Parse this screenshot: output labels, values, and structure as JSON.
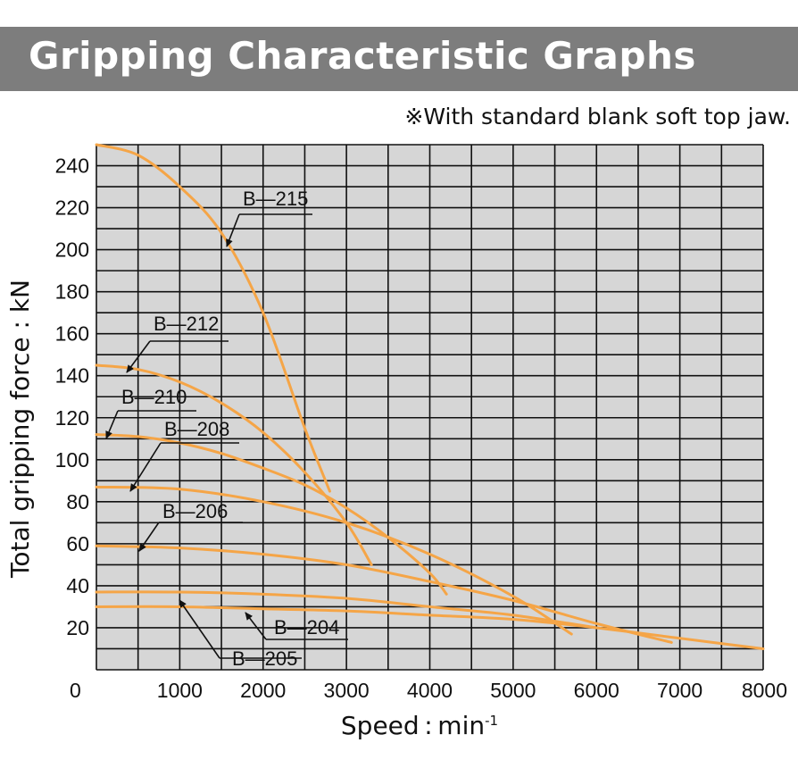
{
  "header": {
    "title": "Gripping Characteristic Graphs",
    "note": "※With standard blank soft top jaw."
  },
  "chart_data": {
    "type": "line",
    "xlabel": "Speed : min",
    "xlabel_sup": "-1",
    "ylabel": "Total gripping force : kN",
    "xlim": [
      0,
      8000
    ],
    "ylim": [
      0,
      250
    ],
    "x_ticks": [
      0,
      1000,
      2000,
      3000,
      4000,
      5000,
      6000,
      7000,
      8000
    ],
    "x_tick_labels": [
      "0",
      "1000",
      "2000",
      "3000",
      "4000",
      "5000",
      "6000",
      "7000",
      "8000"
    ],
    "y_ticks": [
      20,
      40,
      60,
      80,
      100,
      120,
      140,
      160,
      180,
      200,
      220,
      240
    ],
    "y_tick_labels": [
      "20",
      "40",
      "60",
      "80",
      "100",
      "120",
      "140",
      "160",
      "180",
      "200",
      "220",
      "240"
    ],
    "grid": true,
    "line_color": "#f5a547",
    "plot_bg": "#d6d6d6",
    "series": [
      {
        "name": "B—215",
        "x": [
          0,
          500,
          1000,
          1500,
          2000,
          2500,
          2800
        ],
        "y": [
          250,
          245,
          230,
          208,
          170,
          115,
          85
        ]
      },
      {
        "name": "B—212",
        "x": [
          0,
          500,
          1000,
          1500,
          2000,
          2500,
          3000,
          3300
        ],
        "y": [
          145,
          143,
          137,
          127,
          113,
          94,
          70,
          50
        ]
      },
      {
        "name": "B—210",
        "x": [
          0,
          500,
          1000,
          1500,
          2000,
          2500,
          3000,
          3500,
          4000,
          4200
        ],
        "y": [
          112,
          111,
          108,
          103,
          96,
          88,
          77,
          63,
          46,
          36
        ]
      },
      {
        "name": "B—208",
        "x": [
          0,
          1000,
          2000,
          3000,
          4000,
          5000,
          5700
        ],
        "y": [
          87,
          86,
          80,
          70,
          55,
          35,
          17
        ]
      },
      {
        "name": "B—206",
        "x": [
          0,
          1000,
          2000,
          3000,
          4000,
          5000,
          6000,
          6900
        ],
        "y": [
          59,
          58,
          55,
          50,
          42,
          33,
          22,
          13
        ]
      },
      {
        "name": "B—205",
        "x": [
          0,
          1000,
          2000,
          3000,
          4000,
          5000,
          6000
        ],
        "y": [
          37,
          37,
          36,
          34,
          30,
          26,
          20
        ]
      },
      {
        "name": "B—204",
        "x": [
          0,
          1000,
          2000,
          3000,
          4000,
          5000,
          6000,
          7000,
          8000
        ],
        "y": [
          30,
          30,
          29,
          28,
          26,
          24,
          20,
          15,
          10
        ]
      }
    ]
  }
}
